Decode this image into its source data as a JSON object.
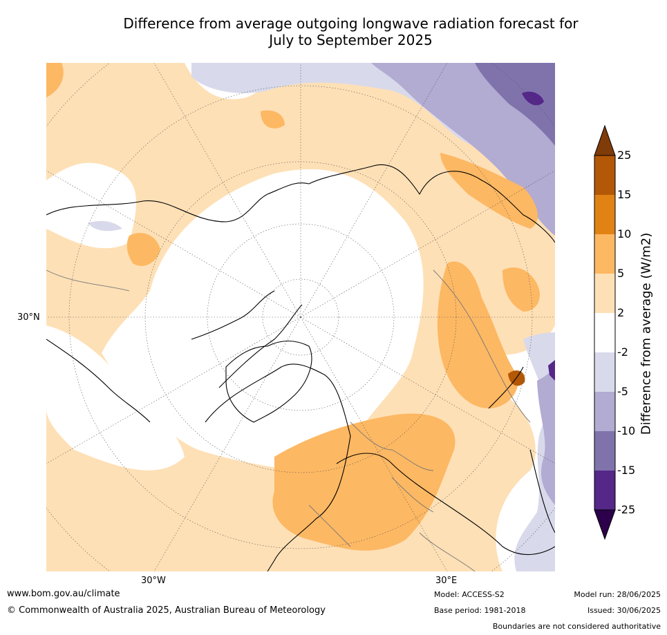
{
  "title_line1": "Difference from average outgoing longwave radiation forecast for",
  "title_line2": "July to September 2025",
  "axis_labels": {
    "lat_30n": "30°N",
    "lon_30w": "30°W",
    "lon_30e": "30°E"
  },
  "colorbar": {
    "title": "Difference from average (W/m2)",
    "ticks": [
      "25",
      "15",
      "10",
      "5",
      "2",
      "-2",
      "-5",
      "-10",
      "-15",
      "-25"
    ],
    "colors": [
      "#7f3b08",
      "#b35806",
      "#e08214",
      "#fdb863",
      "#fee0b6",
      "#ffffff",
      "#d8daeb",
      "#b2abd2",
      "#8073ac",
      "#542788",
      "#2d004b"
    ]
  },
  "footer": {
    "website": "www.bom.gov.au/climate",
    "copyright": "© Commonwealth of Australia 2025, Australian Bureau of Meteorology",
    "model": "Model: ACCESS-S2",
    "base_period": "Base period: 1981-2018",
    "model_run": "Model run: 28/06/2025",
    "issued": "Issued: 30/06/2025",
    "disclaimer": "Boundaries are not considered authoritative"
  }
}
